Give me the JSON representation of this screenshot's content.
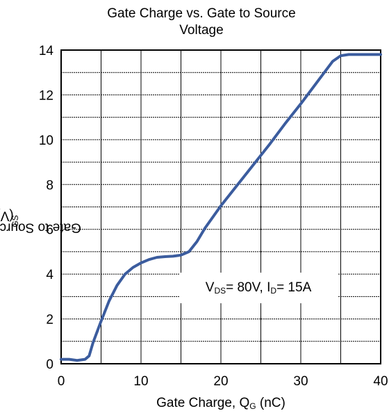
{
  "chart_data": {
    "type": "line",
    "title": "Gate Charge vs. Gate to Source Voltage",
    "title_lines": [
      "Gate Charge vs. Gate to Source",
      "Voltage"
    ],
    "xlabel": {
      "main": "Gate Charge, Q",
      "sub": "G",
      "unit": " (nC)"
    },
    "ylabel": {
      "main": "Gate to Source Voltage, V",
      "sub": "GS",
      "unit": " (V)"
    },
    "xlim": [
      0,
      40
    ],
    "ylim": [
      0,
      14
    ],
    "x_ticks": [
      0,
      10,
      20,
      30,
      40
    ],
    "y_ticks": [
      0,
      2,
      4,
      6,
      8,
      10,
      12,
      14
    ],
    "grid": true,
    "annotation": {
      "p1": "V",
      "s1": "DS",
      "t1": "= 80V, I",
      "s2": "D",
      "t2": "= 15A"
    },
    "series": [
      {
        "color": "#3b5c9e",
        "x": [
          0,
          1,
          2,
          3,
          3.5,
          4,
          5,
          6,
          7,
          8,
          9,
          10,
          11,
          12,
          13,
          14,
          15,
          16,
          17,
          18,
          20,
          22,
          24,
          26,
          28,
          30,
          32,
          34,
          35,
          36,
          38,
          40
        ],
        "y": [
          0.2,
          0.2,
          0.15,
          0.2,
          0.35,
          0.95,
          1.9,
          2.8,
          3.5,
          4.0,
          4.3,
          4.5,
          4.65,
          4.75,
          4.78,
          4.8,
          4.85,
          5.0,
          5.45,
          6.05,
          7.05,
          7.95,
          8.85,
          9.75,
          10.7,
          11.6,
          12.55,
          13.5,
          13.75,
          13.8,
          13.8,
          13.8
        ]
      }
    ]
  }
}
